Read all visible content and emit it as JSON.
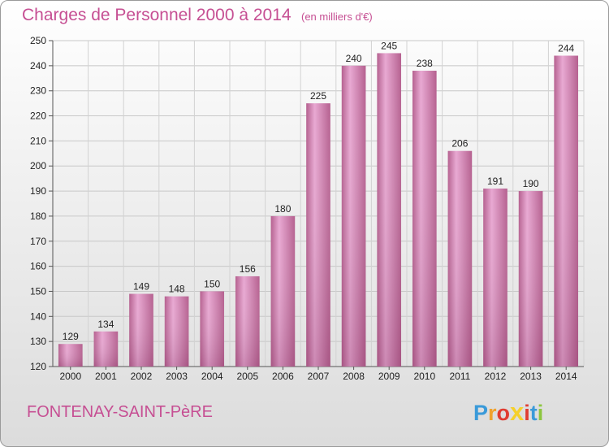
{
  "header": {
    "title": "Charges de Personnel 2000 à 2014",
    "subtitle": "(en milliers d'€)"
  },
  "footer": {
    "city": "FONTENAY-SAINT-PèRE",
    "logo_letters": [
      "P",
      "r",
      "o",
      "x",
      "i",
      "t",
      "i"
    ],
    "logo_colors": [
      "#3a9ad9",
      "#f0a22e",
      "#e03c31",
      "#f5d02b",
      "#e03c31",
      "#3a9ad9",
      "#8cc63f"
    ]
  },
  "colors": {
    "bar_light": "#e8a8d2",
    "bar_dark": "#b5608f",
    "text_accent": "#c64f93"
  },
  "chart_data": {
    "type": "bar",
    "categories": [
      "2000",
      "2001",
      "2002",
      "2003",
      "2004",
      "2005",
      "2006",
      "2007",
      "2008",
      "2009",
      "2010",
      "2011",
      "2012",
      "2013",
      "2014"
    ],
    "values": [
      129,
      134,
      149,
      148,
      150,
      156,
      180,
      225,
      240,
      245,
      238,
      206,
      191,
      190,
      244
    ],
    "yticks": [
      120,
      130,
      140,
      150,
      160,
      170,
      180,
      190,
      200,
      210,
      220,
      230,
      240,
      250
    ],
    "ylim": [
      120,
      250
    ],
    "grid": true,
    "title": "Charges de Personnel 2000 à 2014",
    "xlabel": "",
    "ylabel": ""
  }
}
